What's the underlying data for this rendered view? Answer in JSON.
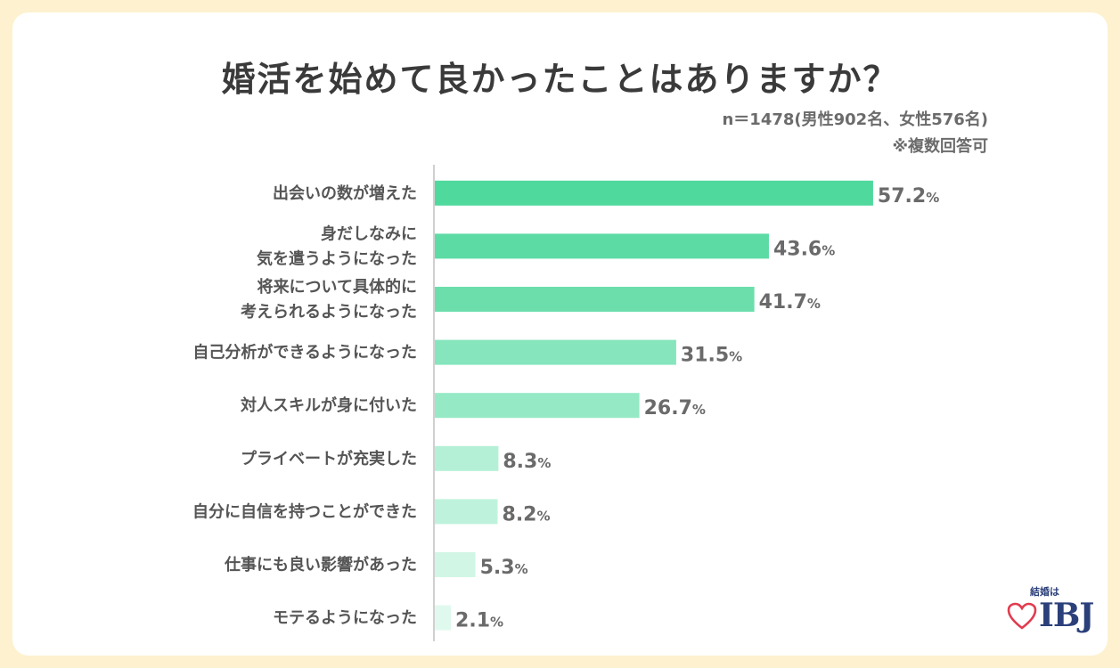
{
  "header": {
    "title": "婚活を始めて良かったことはありますか？",
    "sample": "n＝1478(男性902名、女性576名)",
    "note": "※複数回答可"
  },
  "logo": {
    "tagline": "結婚は",
    "wordmark": "IBJ",
    "icon": "heart-icon"
  },
  "chart_data": {
    "type": "bar",
    "orientation": "horizontal",
    "unit": "%",
    "categories": [
      [
        "出会いの数が増えた"
      ],
      [
        "身だしなみに",
        "気を遣うようになった"
      ],
      [
        "将来について具体的に",
        "考えられるようになった"
      ],
      [
        "自己分析ができるようになった"
      ],
      [
        "対人スキルが身に付いた"
      ],
      [
        "プライベートが充実した"
      ],
      [
        "自分に自信を持つことができた"
      ],
      [
        "仕事にも良い影響があった"
      ],
      [
        "モテるようになった"
      ]
    ],
    "values": [
      57.2,
      43.6,
      41.7,
      31.5,
      26.7,
      8.3,
      8.2,
      5.3,
      2.1
    ],
    "value_labels": [
      "57.2",
      "43.6",
      "41.7",
      "31.5",
      "26.7",
      "8.3",
      "8.2",
      "5.3",
      "2.1"
    ],
    "colors": [
      "#4fd99c",
      "#5ddba5",
      "#6cdeac",
      "#86e5bc",
      "#96e9c5",
      "#b4f0d6",
      "#bff2dc",
      "#d2f6e6",
      "#e0f9ee"
    ]
  }
}
